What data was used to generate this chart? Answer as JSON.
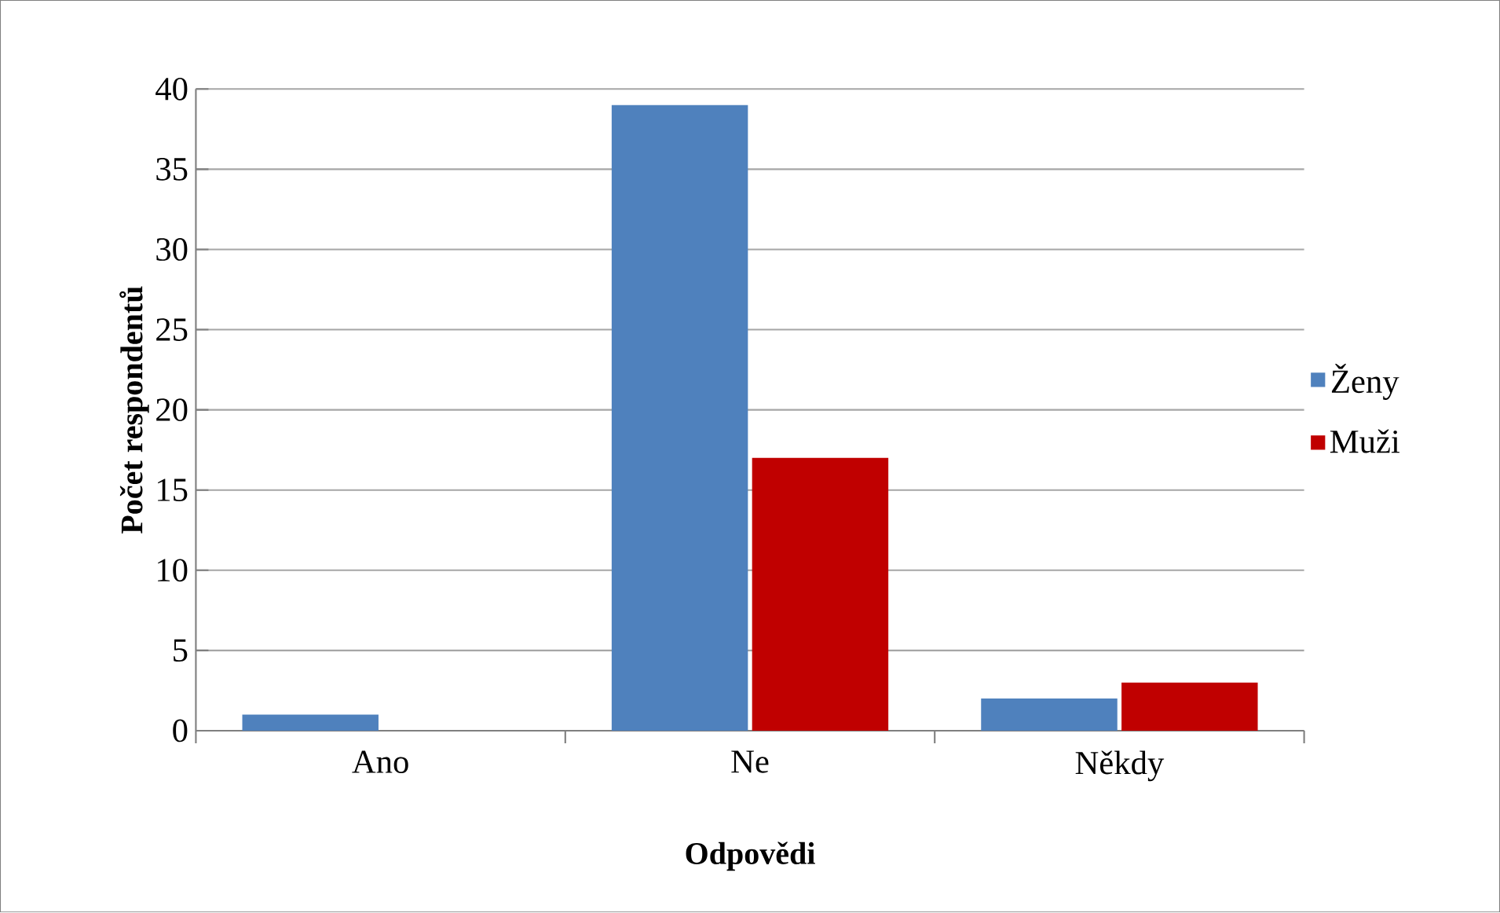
{
  "chart_data": {
    "type": "bar",
    "xlabel": "Odpovědi",
    "ylabel": "Počet respondentů",
    "categories": [
      "Ano",
      "Ne",
      "Někdy"
    ],
    "series": [
      {
        "name": "Ženy",
        "color": "#4f81bd",
        "values": [
          1,
          39,
          2
        ]
      },
      {
        "name": "Muži",
        "color": "#c00000",
        "values": [
          0,
          17,
          3
        ]
      }
    ],
    "ylim": [
      0,
      40
    ],
    "yticks": [
      0,
      5,
      10,
      15,
      20,
      25,
      30,
      35,
      40
    ],
    "grid": "y",
    "legend": "right"
  }
}
